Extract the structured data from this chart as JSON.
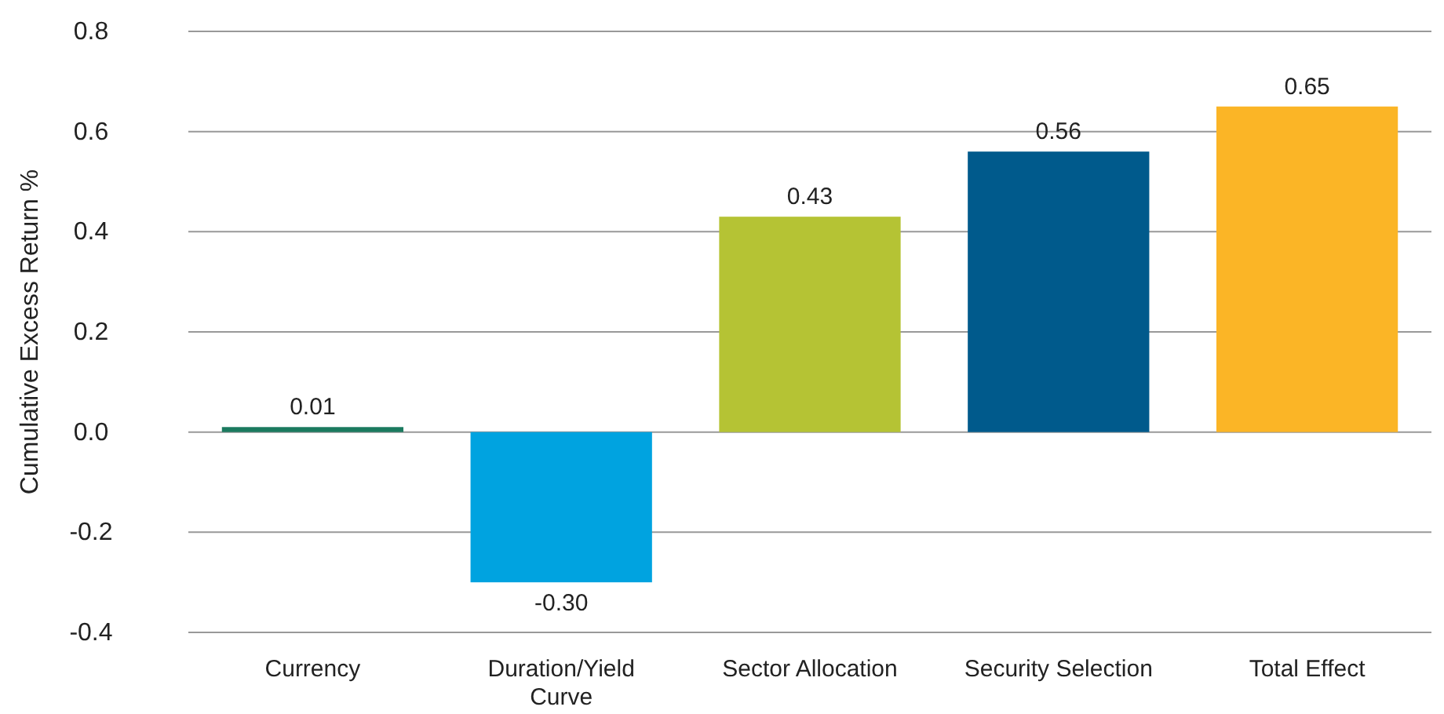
{
  "chart_data": {
    "type": "bar",
    "ylabel": "Cumulative Excess Return %",
    "categories": [
      "Currency",
      "Duration/Yield Curve",
      "Sector Allocation",
      "Security Selection",
      "Total Effect"
    ],
    "values": [
      0.01,
      -0.3,
      0.43,
      0.56,
      0.65
    ],
    "value_labels": [
      "0.01",
      "-0.30",
      "0.43",
      "0.56",
      "0.65"
    ],
    "colors": [
      "#1b7a5f",
      "#00a3e0",
      "#b5c334",
      "#005a8c",
      "#fbb526"
    ],
    "ylim": [
      -0.4,
      0.8
    ],
    "yticks": [
      {
        "value": -0.4,
        "label": "-0.4"
      },
      {
        "value": -0.2,
        "label": "-0.2"
      },
      {
        "value": 0,
        "label": "0.0"
      },
      {
        "value": 0.2,
        "label": "0.2"
      },
      {
        "value": 0.4,
        "label": "0.4"
      },
      {
        "value": 0.6,
        "label": "0.6"
      },
      {
        "value": 0.8,
        "label": "0.8"
      }
    ],
    "grid": "y"
  }
}
